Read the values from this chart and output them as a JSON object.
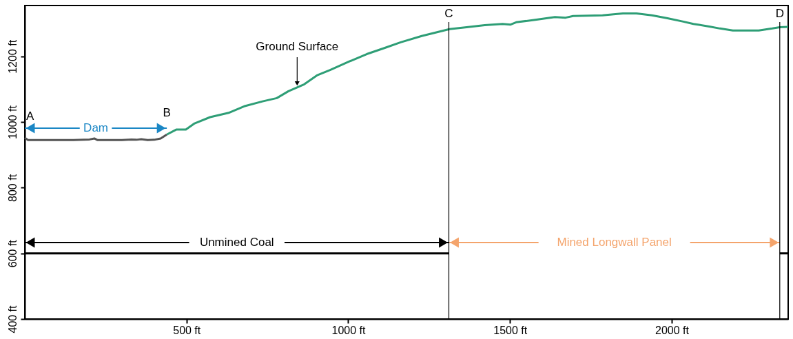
{
  "chart_data": {
    "type": "line",
    "xlim": [
      0,
      2360
    ],
    "ylim": [
      400,
      1355
    ],
    "xticks": [
      {
        "value": 500,
        "label": "500 ft"
      },
      {
        "value": 1000,
        "label": "1000 ft"
      },
      {
        "value": 1500,
        "label": "1500 ft"
      },
      {
        "value": 2000,
        "label": "2000 ft"
      }
    ],
    "yticks": [
      {
        "value": 400,
        "label": "400 ft"
      },
      {
        "value": 600,
        "label": "600 ft"
      },
      {
        "value": 800,
        "label": "800 ft"
      },
      {
        "value": 1000,
        "label": "1000 ft"
      },
      {
        "value": 1200,
        "label": "1200 ft"
      }
    ],
    "series": [
      {
        "color": "#555555",
        "x": [
          0,
          10,
          150,
          200,
          215,
          225,
          300,
          330,
          345,
          360,
          380,
          400,
          420,
          439
        ],
        "values": [
          952,
          945,
          945,
          947,
          950,
          945,
          945,
          947,
          946,
          948,
          945,
          946,
          950,
          962
        ]
      },
      {
        "color": "#2e9e76",
        "x": [
          439,
          468,
          498,
          525,
          573,
          630,
          678,
          735,
          779,
          815,
          864,
          903,
          945,
          1002,
          1057,
          1113,
          1162,
          1227,
          1313,
          1366,
          1422,
          1477,
          1502,
          1519,
          1582,
          1639,
          1672,
          1695,
          1786,
          1849,
          1891,
          1939,
          1987,
          2036,
          2067,
          2116,
          2149,
          2189,
          2269,
          2311,
          2334,
          2360
        ],
        "values": [
          962,
          977,
          977,
          996,
          1015,
          1028,
          1048,
          1063,
          1073,
          1094,
          1115,
          1142,
          1159,
          1184,
          1207,
          1226,
          1243,
          1262,
          1283,
          1289,
          1295,
          1299,
          1297,
          1304,
          1312,
          1320,
          1318,
          1323,
          1325,
          1331,
          1331,
          1325,
          1316,
          1306,
          1299,
          1291,
          1285,
          1279,
          1279,
          1285,
          1289,
          1290
        ]
      },
      {
        "color": "#000000",
        "x": [
          0,
          1311
        ],
        "values": [
          600,
          600
        ]
      },
      {
        "color": "#000000",
        "x": [
          2334,
          2360
        ],
        "values": [
          600,
          600
        ]
      }
    ],
    "ref_lines": [
      {
        "axis": "x",
        "value": 1311,
        "label": "C"
      },
      {
        "axis": "x",
        "value": 2334,
        "label": "D"
      }
    ],
    "annotations": [
      {
        "text": "A",
        "x": 0,
        "y": 952
      },
      {
        "text": "B",
        "x": 439,
        "y": 962
      },
      {
        "text": "Ground Surface",
        "x": 842,
        "y": 1105
      },
      "Dam",
      "Unmined Coal",
      "Mined Longwall Panel"
    ]
  }
}
